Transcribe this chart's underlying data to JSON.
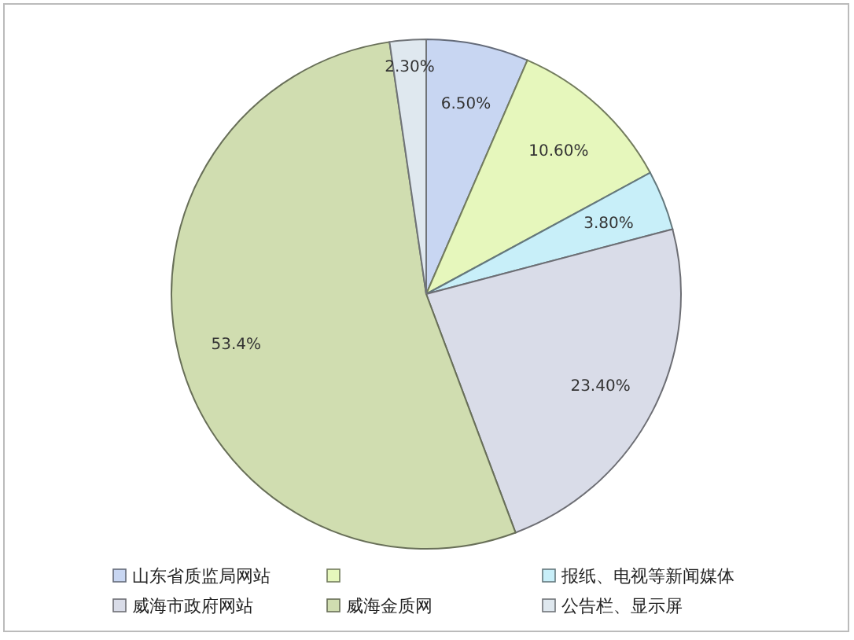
{
  "chart_data": {
    "type": "pie",
    "categories": [
      "山东省质监局网站",
      null,
      "报纸、电视等新闻媒体",
      "威海市政府网站",
      "威海金质网",
      "公告栏、显示屏"
    ],
    "values": [
      6.5,
      10.6,
      3.8,
      23.4,
      53.4,
      2.3
    ],
    "value_labels": [
      "6.50%",
      "10.60%",
      "3.80%",
      "23.40%",
      "53.4%",
      "2.30%"
    ],
    "colors": [
      "#c8d6f2",
      "#e6f7bc",
      "#c8eff9",
      "#d9dce8",
      "#d0ddb0",
      "#dfe8ef"
    ],
    "legend": "bottom"
  }
}
